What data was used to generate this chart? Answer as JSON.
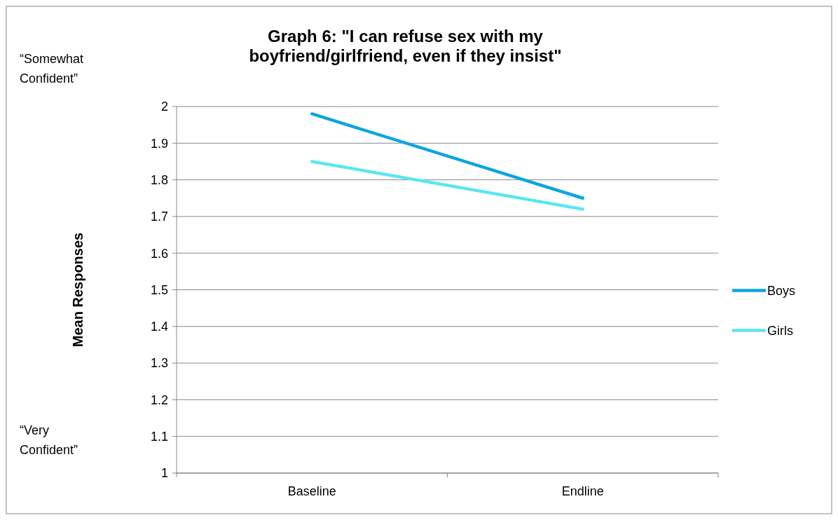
{
  "chart_data": {
    "type": "line",
    "title": "Graph 6: \"I can refuse sex with my boyfriend/girlfriend, even if they insist\"",
    "ylabel": "Mean Responses",
    "categories": [
      "Baseline",
      "Endline"
    ],
    "series": [
      {
        "name": "Boys",
        "color": "#0ea5e0",
        "values": [
          1.98,
          1.75
        ]
      },
      {
        "name": "Girls",
        "color": "#5ce6f0",
        "values": [
          1.85,
          1.72
        ]
      }
    ],
    "ylim": [
      1,
      2
    ],
    "yticks": [
      1,
      1.1,
      1.2,
      1.3,
      1.4,
      1.5,
      1.6,
      1.7,
      1.8,
      1.9,
      2
    ],
    "grid": "y",
    "legend": "right",
    "marker": "none",
    "line_style": "solid",
    "annotations": [
      "“Somewhat Confident”",
      "“Very Confident”"
    ]
  }
}
